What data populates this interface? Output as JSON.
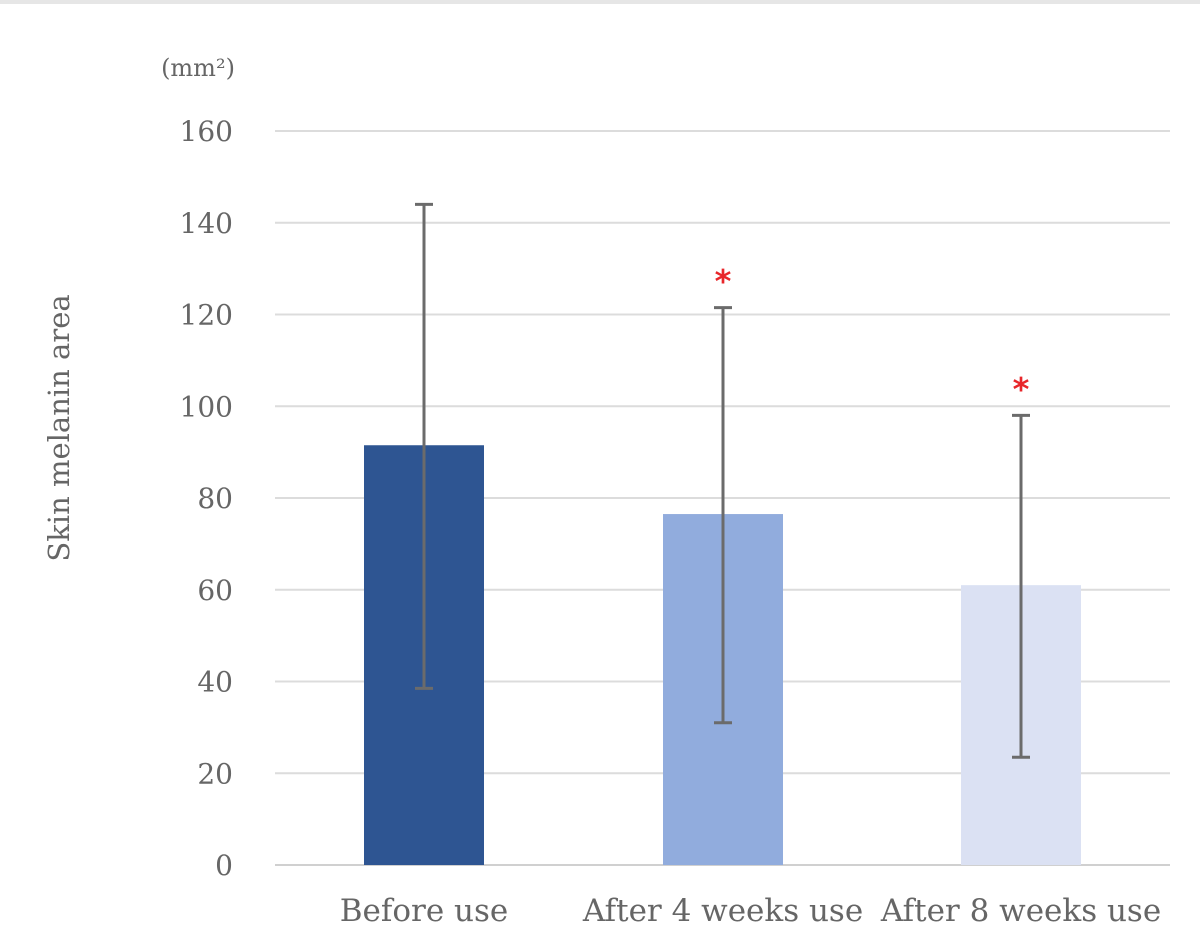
{
  "chart_data": {
    "type": "bar",
    "title": "",
    "xlabel": "",
    "ylabel": "Skin melanin area",
    "unit_label": "(mm²)",
    "ylim": [
      0,
      160
    ],
    "yticks": [
      0,
      20,
      40,
      60,
      80,
      100,
      120,
      140,
      160
    ],
    "grid": true,
    "categories": [
      "Before use",
      "After 4 weeks use",
      "After 8 weeks use"
    ],
    "values": [
      91.5,
      76.5,
      61
    ],
    "error_upper": [
      144,
      121.5,
      98
    ],
    "error_lower": [
      38.5,
      31,
      23.5
    ],
    "significance": [
      "",
      "*",
      "*"
    ],
    "colors": [
      "#2e5592",
      "#91acdd",
      "#dbe1f3"
    ],
    "significance_color": "#e8262a"
  }
}
